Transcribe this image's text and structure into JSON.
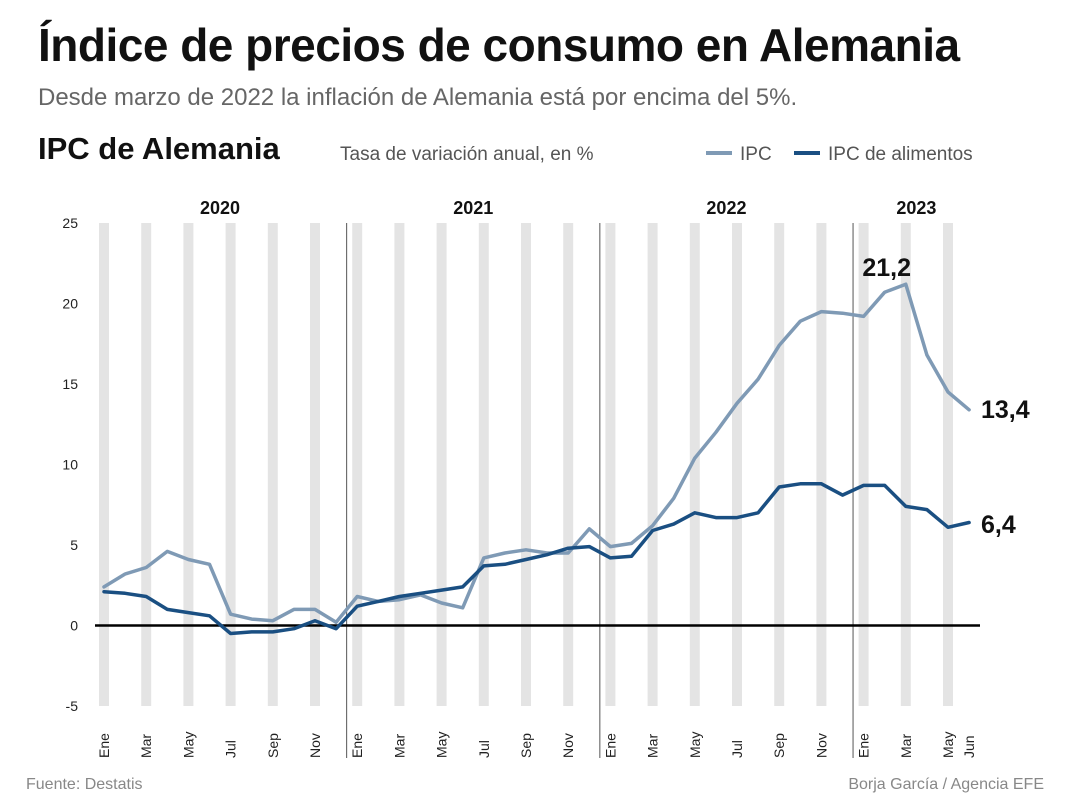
{
  "header": {
    "title": "Índice de precios de consumo en Alemania",
    "subtitle": "Desde marzo de 2022 la inflación de Alemania está por encima del 5%."
  },
  "chart_header": {
    "title": "IPC de Alemania",
    "unit": "Tasa de variación anual, en %"
  },
  "legend": {
    "ipc_label": "IPC",
    "food_label": "IPC de alimentos"
  },
  "footer": {
    "source": "Fuente: Destatis",
    "credit": "Borja García / Agencia EFE"
  },
  "colors": {
    "ipc": "#7f9ab5",
    "food": "#1a4f82",
    "band": "#e4e4e4",
    "zero_line": "#000000"
  },
  "chart_data": {
    "type": "line",
    "title": "IPC de Alemania",
    "xlabel": "",
    "ylabel": "Tasa de variación anual, en %",
    "ylim": [
      -5,
      25
    ],
    "yticks": [
      -5,
      0,
      5,
      10,
      15,
      20,
      25
    ],
    "grid": false,
    "legend": "top-right",
    "years": [
      "2020",
      "2021",
      "2022",
      "2023"
    ],
    "x_tick_labels": [
      "Ene",
      "Mar",
      "May",
      "Jul",
      "Sep",
      "Nov",
      "Ene",
      "Mar",
      "May",
      "Jul",
      "Sep",
      "Nov",
      "Ene",
      "Mar",
      "May",
      "Jul",
      "Sep",
      "Nov",
      "Ene",
      "Mar",
      "May",
      "Jun"
    ],
    "x": [
      "2020-01",
      "2020-02",
      "2020-03",
      "2020-04",
      "2020-05",
      "2020-06",
      "2020-07",
      "2020-08",
      "2020-09",
      "2020-10",
      "2020-11",
      "2020-12",
      "2021-01",
      "2021-02",
      "2021-03",
      "2021-04",
      "2021-05",
      "2021-06",
      "2021-07",
      "2021-08",
      "2021-09",
      "2021-10",
      "2021-11",
      "2021-12",
      "2022-01",
      "2022-02",
      "2022-03",
      "2022-04",
      "2022-05",
      "2022-06",
      "2022-07",
      "2022-08",
      "2022-09",
      "2022-10",
      "2022-11",
      "2022-12",
      "2023-01",
      "2023-02",
      "2023-03",
      "2023-04",
      "2023-05",
      "2023-06"
    ],
    "series": [
      {
        "name": "IPC",
        "values": [
          2.4,
          3.2,
          3.6,
          4.6,
          4.1,
          3.8,
          0.7,
          0.4,
          0.3,
          1.0,
          1.0,
          0.2,
          1.8,
          1.5,
          1.6,
          1.9,
          1.4,
          1.1,
          4.2,
          4.5,
          4.7,
          4.5,
          4.5,
          6.0,
          4.9,
          5.1,
          6.2,
          7.9,
          10.4,
          12.0,
          13.8,
          15.3,
          17.4,
          18.9,
          19.5,
          19.4,
          19.2,
          20.7,
          21.2,
          16.8,
          14.5,
          13.4
        ]
      },
      {
        "name": "IPC de alimentos",
        "values": [
          2.1,
          2.0,
          1.8,
          1.0,
          0.8,
          0.6,
          -0.5,
          -0.4,
          -0.4,
          -0.2,
          0.3,
          -0.2,
          1.2,
          1.5,
          1.8,
          2.0,
          2.2,
          2.4,
          3.7,
          3.8,
          4.1,
          4.4,
          4.8,
          4.9,
          4.2,
          4.3,
          5.9,
          6.3,
          7.0,
          6.7,
          6.7,
          7.0,
          8.6,
          8.8,
          8.8,
          8.1,
          8.7,
          8.7,
          7.4,
          7.2,
          6.1,
          6.4
        ]
      }
    ],
    "annotations": [
      "21,2",
      "13,4",
      "6,4"
    ]
  }
}
